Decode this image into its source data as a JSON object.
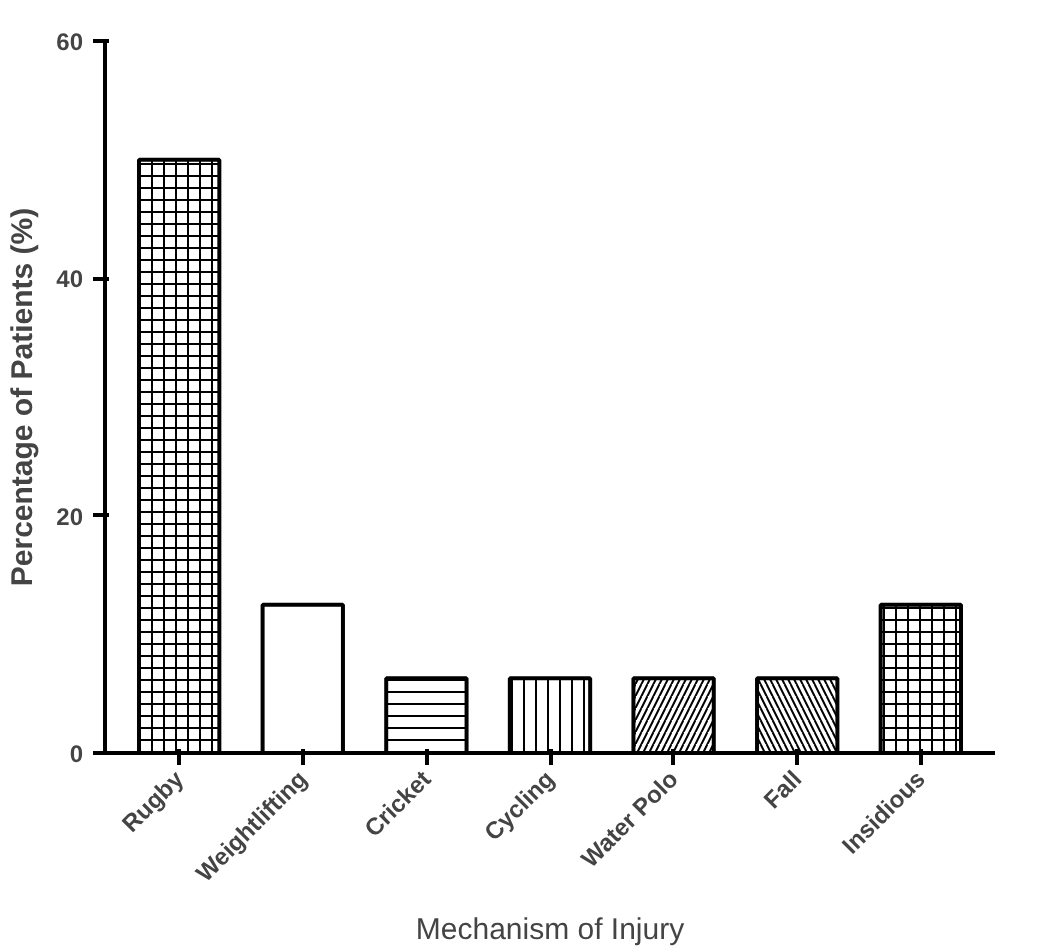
{
  "chart_data": {
    "type": "bar",
    "xlabel": "Mechanism of Injury",
    "ylabel": "Percentage of Patients (%)",
    "categories": [
      "Rugby",
      "Weightlifting",
      "Cricket",
      "Cycling",
      "Water Polo",
      "Fall",
      "Insidious"
    ],
    "values": [
      50,
      12.5,
      6.3,
      6.3,
      6.3,
      6.3,
      12.5
    ],
    "color": "#ffffff",
    "ylim": [
      0,
      60
    ],
    "yticks": [
      0,
      20,
      40,
      60
    ],
    "grid": false
  }
}
